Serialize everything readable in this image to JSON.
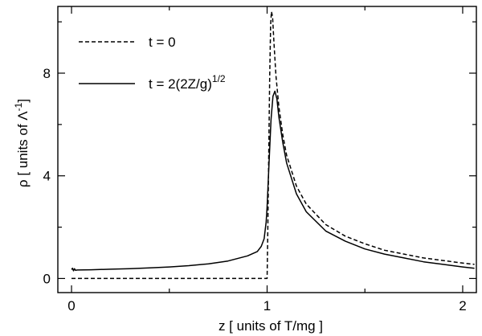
{
  "chart_data": {
    "type": "line",
    "title": "",
    "xlabel": {
      "prefix": "z  [ units of T/mg ]"
    },
    "ylabel": {
      "main": "ρ  [ units of Λ",
      "sup": "-1",
      "close": "]"
    },
    "xlim": [
      -0.07,
      2.07
    ],
    "ylim": [
      -0.55,
      10.6
    ],
    "xticks": [
      0,
      1,
      2
    ],
    "xtick_labels": [
      "0",
      "1",
      "2"
    ],
    "xminor": [
      0.5,
      1.5
    ],
    "yticks": [
      0,
      4,
      8
    ],
    "ytick_labels": [
      "0",
      "4",
      "8"
    ],
    "yminor": [
      2,
      6,
      10
    ],
    "grid": false,
    "legend_position": "top-left",
    "series": [
      {
        "name": "t = 0",
        "style": "dashed",
        "points": [
          [
            0.0,
            0.0
          ],
          [
            0.995,
            0.0
          ],
          [
            1.0,
            0.0
          ],
          [
            1.003,
            1.5
          ],
          [
            1.008,
            4.5
          ],
          [
            1.013,
            7.8
          ],
          [
            1.018,
            9.9
          ],
          [
            1.022,
            10.4
          ],
          [
            1.028,
            10.2
          ],
          [
            1.035,
            9.2
          ],
          [
            1.045,
            7.9
          ],
          [
            1.06,
            6.7
          ],
          [
            1.08,
            5.6
          ],
          [
            1.1,
            4.8
          ],
          [
            1.15,
            3.6
          ],
          [
            1.2,
            2.9
          ],
          [
            1.3,
            2.1
          ],
          [
            1.4,
            1.65
          ],
          [
            1.5,
            1.35
          ],
          [
            1.6,
            1.1
          ],
          [
            1.7,
            0.95
          ],
          [
            1.8,
            0.8
          ],
          [
            1.9,
            0.7
          ],
          [
            2.0,
            0.6
          ],
          [
            2.06,
            0.55
          ]
        ]
      },
      {
        "name": "t = 2(2Z/g)",
        "name_sup": "1/2",
        "style": "solid",
        "points": [
          [
            0.0,
            0.35
          ],
          [
            0.005,
            0.4
          ],
          [
            0.01,
            0.3
          ],
          [
            0.015,
            0.38
          ],
          [
            0.02,
            0.32
          ],
          [
            0.03,
            0.33
          ],
          [
            0.1,
            0.34
          ],
          [
            0.2,
            0.36
          ],
          [
            0.3,
            0.38
          ],
          [
            0.4,
            0.41
          ],
          [
            0.5,
            0.45
          ],
          [
            0.6,
            0.5
          ],
          [
            0.7,
            0.57
          ],
          [
            0.8,
            0.68
          ],
          [
            0.9,
            0.88
          ],
          [
            0.95,
            1.05
          ],
          [
            0.97,
            1.25
          ],
          [
            0.985,
            1.55
          ],
          [
            0.995,
            2.2
          ],
          [
            1.0,
            2.8
          ],
          [
            1.01,
            4.5
          ],
          [
            1.02,
            6.2
          ],
          [
            1.03,
            7.1
          ],
          [
            1.04,
            7.3
          ],
          [
            1.05,
            7.0
          ],
          [
            1.06,
            6.3
          ],
          [
            1.08,
            5.3
          ],
          [
            1.1,
            4.5
          ],
          [
            1.15,
            3.3
          ],
          [
            1.2,
            2.6
          ],
          [
            1.3,
            1.85
          ],
          [
            1.4,
            1.45
          ],
          [
            1.5,
            1.15
          ],
          [
            1.6,
            0.95
          ],
          [
            1.7,
            0.8
          ],
          [
            1.8,
            0.65
          ],
          [
            1.9,
            0.55
          ],
          [
            2.0,
            0.45
          ],
          [
            2.06,
            0.4
          ]
        ]
      }
    ]
  }
}
